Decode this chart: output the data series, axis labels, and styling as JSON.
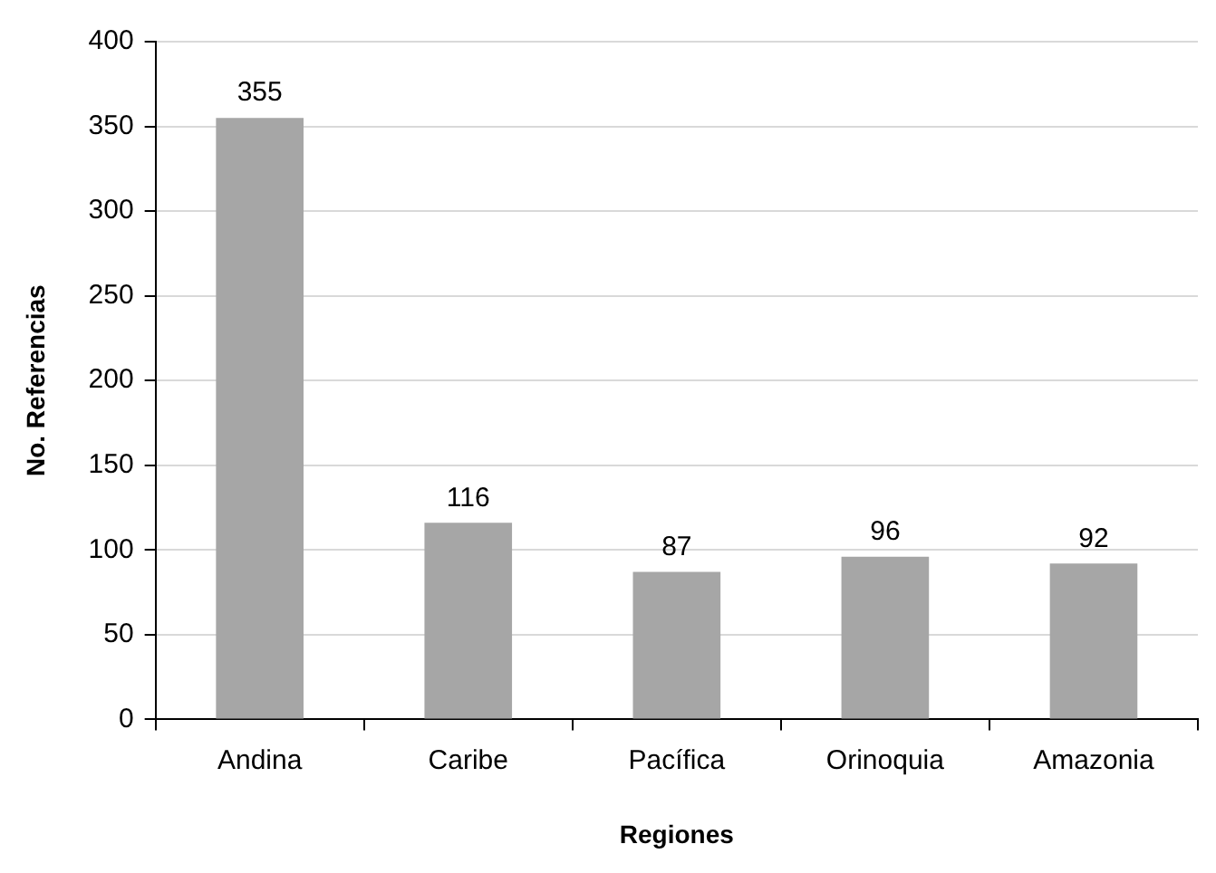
{
  "chart_data": {
    "type": "bar",
    "xlabel": "Regiones",
    "ylabel": "No. Referencias",
    "categories": [
      "Andina",
      "Caribe",
      "Pacífica",
      "Orinoquia",
      "Amazonia"
    ],
    "values": [
      355,
      116,
      87,
      96,
      92
    ],
    "color": "#a6a6a6",
    "ylim": [
      0,
      400
    ],
    "yticks": [
      0,
      50,
      100,
      150,
      200,
      250,
      300,
      350,
      400
    ],
    "grid": "y",
    "data_labels": true,
    "legend": false
  }
}
